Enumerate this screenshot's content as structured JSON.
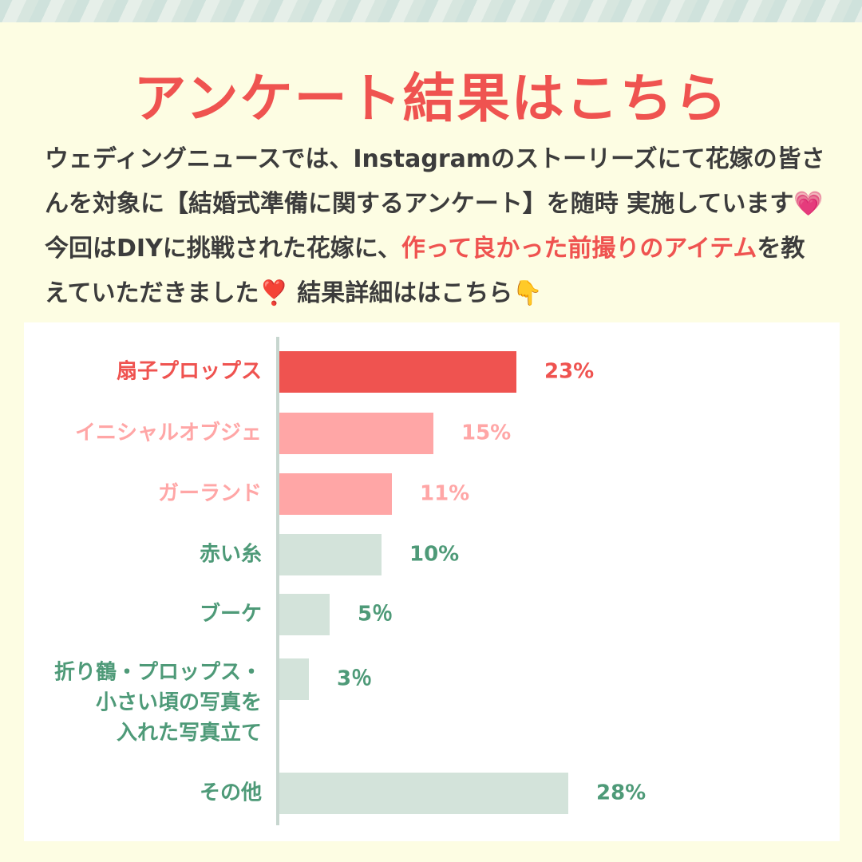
{
  "title": "アンケート結果はこちら",
  "intro": {
    "part1": "ウェディングニュースでは、Instagramのストーリーズにて花嫁の皆さんを対象に【結婚式準備に関するアンケート】を随時 実施しています",
    "emoji1": "💗",
    "part2": " 今回はDIYに挑戦された花嫁に、",
    "highlight": "作って良かった前撮りのアイテム",
    "part3": "を教えていただきました",
    "emoji2": "❣️",
    "part4": " 結果詳細ははこちら",
    "emoji3": "👇"
  },
  "colors": {
    "accent": "#ef5350",
    "accent_light": "#ffa6a6",
    "muted": "#d3e3da",
    "muted_text": "#4e9a78"
  },
  "chart_data": {
    "type": "bar",
    "orientation": "horizontal",
    "categories": [
      "扇子プロップス",
      "イニシャルオブジェ",
      "ガーランド",
      "赤い糸",
      "ブーケ",
      [
        "折り鶴・プロップス・",
        "小さい頃の写真を",
        "入れた写真立て"
      ],
      "その他"
    ],
    "values": [
      23,
      15,
      11,
      10,
      5,
      3,
      28
    ],
    "value_labels": [
      "23%",
      "15%",
      "11%",
      "10%",
      "5％",
      "3％",
      "28%"
    ],
    "unit": "%"
  }
}
